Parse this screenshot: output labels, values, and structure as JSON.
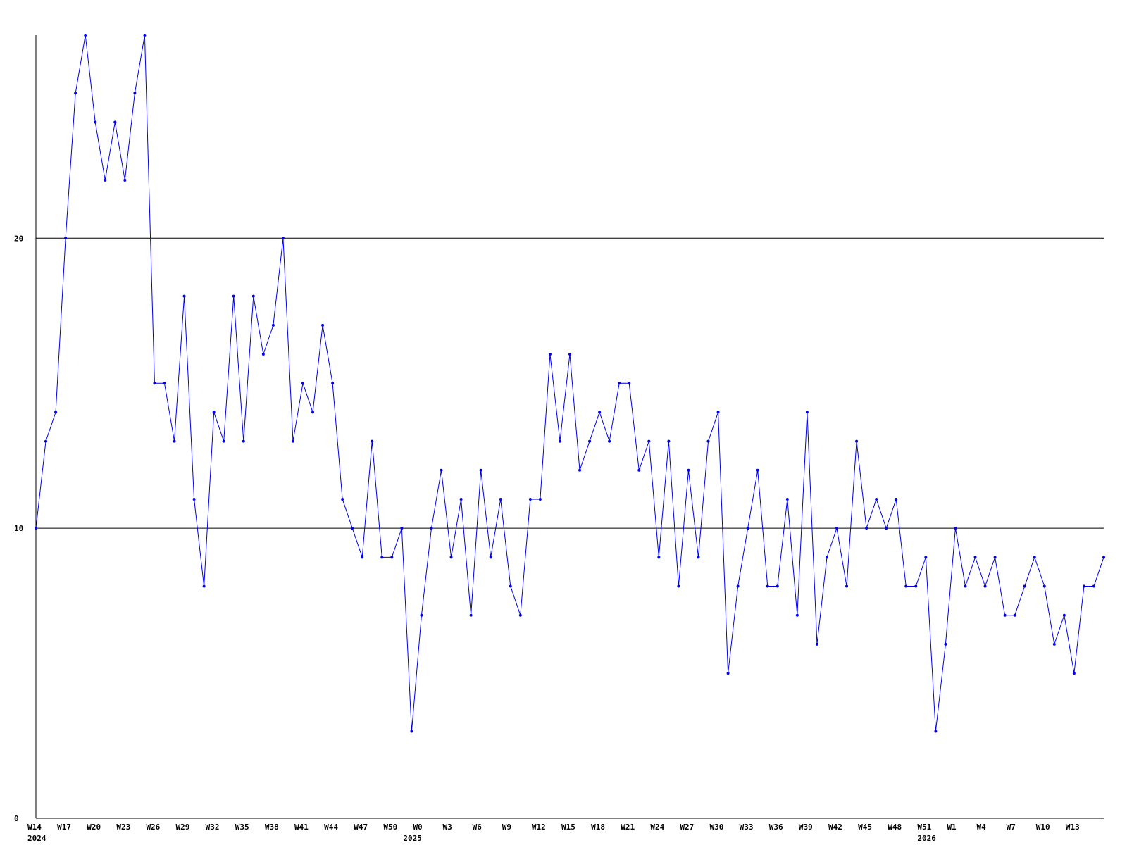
{
  "chart_data": {
    "type": "line",
    "title": "",
    "xlabel": "",
    "ylabel": "",
    "ylim": [
      0,
      27
    ],
    "y_ticks": [
      0,
      10,
      20
    ],
    "x_tick_labels": [
      "W14",
      "W17",
      "W20",
      "W23",
      "W26",
      "W29",
      "W32",
      "W35",
      "W38",
      "W41",
      "W44",
      "W47",
      "W50",
      "W0",
      "W3",
      "W6",
      "W9",
      "W12",
      "W15",
      "W18",
      "W21",
      "W24",
      "W27",
      "W30",
      "W33",
      "W36",
      "W39",
      "W42",
      "W45",
      "W48",
      "W51",
      "W1",
      "W4",
      "W7",
      "W10",
      "W13"
    ],
    "year_labels": [
      "2024",
      "2025",
      "2026"
    ],
    "grid": "horizontal at 10 and 20",
    "colors": {
      "line": "#0000ee",
      "axis": "#000000",
      "grid": "#000000",
      "background": "#ffffff"
    },
    "series": [
      {
        "values": [
          10,
          13,
          14,
          20,
          25,
          27,
          24,
          22,
          24,
          22,
          25,
          27,
          15,
          15,
          13,
          18,
          11,
          8,
          14,
          13,
          18,
          13,
          18,
          16,
          17,
          20,
          13,
          15,
          14,
          17,
          15,
          11,
          10,
          9,
          13,
          9,
          9,
          10,
          3,
          7,
          10,
          12,
          9,
          11,
          7,
          12,
          9,
          11,
          8,
          7,
          11,
          11,
          16,
          13,
          16,
          12,
          13,
          14,
          13,
          15,
          15,
          12,
          13,
          9,
          13,
          8,
          12,
          9,
          13,
          14,
          5,
          8,
          10,
          12,
          8,
          8,
          11,
          7,
          14,
          6,
          9,
          10,
          8,
          13,
          10,
          11,
          10,
          11,
          8,
          8,
          9,
          3,
          6,
          10,
          8,
          9,
          8,
          9,
          7,
          7,
          8,
          9,
          8,
          6,
          7,
          5,
          8,
          8,
          9
        ]
      }
    ]
  }
}
